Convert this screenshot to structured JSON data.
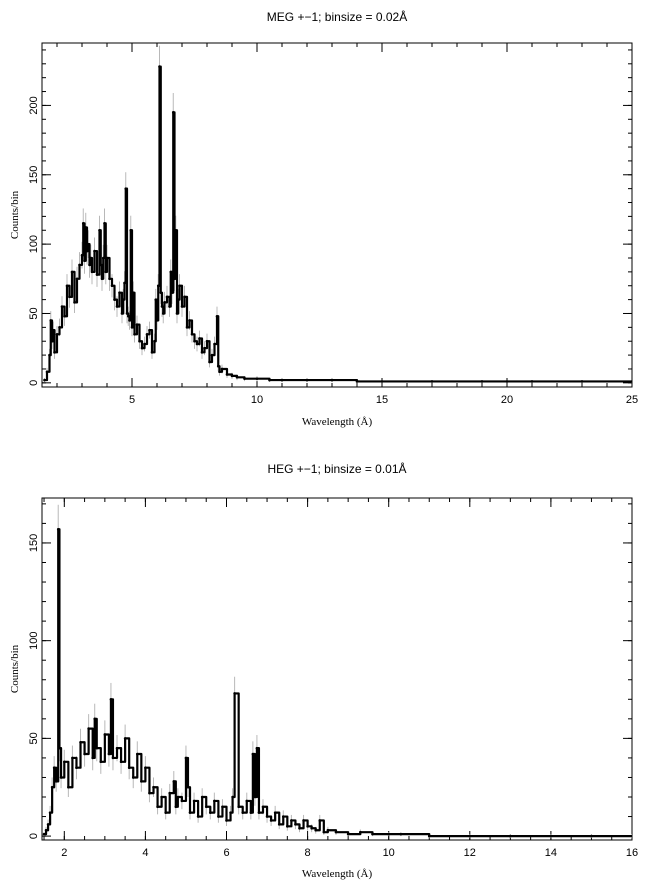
{
  "chart_data": [
    {
      "type": "line",
      "title": "MEG +−1; binsize = 0.02Å",
      "xlabel": "Wavelength (Å)",
      "ylabel": "Counts/bin",
      "xlim": [
        1.4,
        25
      ],
      "ylim": [
        -3,
        245
      ],
      "x_ticks": [
        5,
        10,
        15,
        20,
        25
      ],
      "y_ticks": [
        0,
        50,
        100,
        150,
        200
      ],
      "x_minor_step": 1,
      "y_minor_step": 10,
      "error_bars": true,
      "series": [
        {
          "x": [
            1.5,
            1.6,
            1.7,
            1.75,
            1.8,
            1.85,
            1.9,
            2.0,
            2.1,
            2.2,
            2.3,
            2.4,
            2.5,
            2.6,
            2.7,
            2.8,
            2.9,
            3.0,
            3.05,
            3.1,
            3.15,
            3.2,
            3.25,
            3.3,
            3.35,
            3.4,
            3.5,
            3.6,
            3.7,
            3.75,
            3.8,
            3.85,
            3.9,
            3.95,
            4.0,
            4.1,
            4.2,
            4.3,
            4.4,
            4.5,
            4.6,
            4.65,
            4.7,
            4.75,
            4.8,
            4.85,
            4.9,
            4.95,
            5.0,
            5.05,
            5.1,
            5.2,
            5.3,
            5.4,
            5.5,
            5.6,
            5.7,
            5.8,
            5.9,
            5.95,
            6.0,
            6.05,
            6.1,
            6.15,
            6.2,
            6.25,
            6.3,
            6.4,
            6.5,
            6.55,
            6.6,
            6.65,
            6.7,
            6.75,
            6.8,
            6.85,
            6.9,
            7.0,
            7.1,
            7.2,
            7.3,
            7.4,
            7.5,
            7.6,
            7.7,
            7.8,
            7.9,
            8.0,
            8.1,
            8.2,
            8.3,
            8.4,
            8.45,
            8.5,
            8.6,
            8.8,
            9.0,
            9.2,
            9.5,
            10.0,
            10.5,
            11.0,
            12.0,
            13.0,
            14.0,
            15.0,
            17.0,
            19.0,
            21.0,
            23.0,
            25.0
          ],
          "y": [
            2,
            8,
            20,
            45,
            30,
            38,
            22,
            35,
            40,
            55,
            48,
            70,
            62,
            80,
            58,
            75,
            85,
            92,
            115,
            88,
            112,
            95,
            100,
            85,
            90,
            80,
            95,
            78,
            110,
            85,
            75,
            90,
            115,
            80,
            90,
            75,
            70,
            60,
            55,
            65,
            50,
            60,
            72,
            140,
            50,
            48,
            45,
            110,
            40,
            65,
            35,
            42,
            30,
            25,
            28,
            35,
            38,
            22,
            30,
            60,
            45,
            70,
            228,
            65,
            55,
            50,
            58,
            62,
            55,
            80,
            65,
            195,
            75,
            110,
            50,
            60,
            70,
            55,
            62,
            40,
            45,
            35,
            30,
            28,
            32,
            22,
            25,
            30,
            15,
            20,
            28,
            48,
            12,
            8,
            10,
            6,
            5,
            4,
            3,
            3,
            2,
            2,
            2,
            2,
            1,
            1,
            1,
            1,
            1,
            1,
            1
          ]
        }
      ]
    },
    {
      "type": "line",
      "title": "HEG +−1; binsize = 0.01Å",
      "xlabel": "Wavelength (Å)",
      "ylabel": "Counts/bin",
      "xlim": [
        1.45,
        16
      ],
      "ylim": [
        -2,
        173
      ],
      "x_ticks": [
        2,
        4,
        6,
        8,
        10,
        12,
        14,
        16
      ],
      "y_ticks": [
        0,
        50,
        100,
        150
      ],
      "x_minor_step": 0.5,
      "y_minor_step": 10,
      "error_bars": true,
      "series": [
        {
          "x": [
            1.5,
            1.55,
            1.6,
            1.65,
            1.7,
            1.75,
            1.8,
            1.85,
            1.88,
            1.92,
            2.0,
            2.1,
            2.2,
            2.3,
            2.4,
            2.5,
            2.6,
            2.7,
            2.75,
            2.8,
            2.9,
            3.0,
            3.1,
            3.15,
            3.2,
            3.3,
            3.4,
            3.5,
            3.6,
            3.7,
            3.8,
            3.9,
            4.0,
            4.1,
            4.2,
            4.3,
            4.4,
            4.5,
            4.6,
            4.7,
            4.75,
            4.8,
            4.9,
            5.0,
            5.05,
            5.1,
            5.2,
            5.3,
            5.4,
            5.5,
            5.6,
            5.7,
            5.8,
            5.9,
            6.0,
            6.1,
            6.15,
            6.2,
            6.3,
            6.4,
            6.5,
            6.6,
            6.65,
            6.7,
            6.75,
            6.8,
            6.9,
            7.0,
            7.1,
            7.2,
            7.3,
            7.4,
            7.5,
            7.6,
            7.7,
            7.8,
            7.9,
            8.0,
            8.1,
            8.2,
            8.3,
            8.4,
            8.5,
            8.7,
            9.0,
            9.3,
            9.6,
            10.0,
            10.3,
            11.0,
            12.0,
            13.0,
            14.0,
            15.0,
            16.0
          ],
          "y": [
            1,
            3,
            6,
            12,
            25,
            35,
            28,
            157,
            45,
            30,
            38,
            25,
            40,
            35,
            48,
            42,
            55,
            40,
            60,
            45,
            38,
            52,
            42,
            70,
            40,
            45,
            38,
            50,
            35,
            30,
            42,
            28,
            35,
            22,
            25,
            15,
            20,
            12,
            22,
            28,
            15,
            20,
            18,
            40,
            25,
            12,
            18,
            10,
            20,
            15,
            12,
            18,
            10,
            15,
            8,
            12,
            20,
            73,
            15,
            12,
            18,
            12,
            42,
            20,
            45,
            12,
            15,
            10,
            8,
            12,
            6,
            10,
            5,
            8,
            6,
            4,
            8,
            5,
            4,
            3,
            8,
            2,
            3,
            2,
            1,
            2,
            1,
            1,
            1,
            0,
            0,
            0,
            0,
            0,
            0
          ]
        }
      ]
    }
  ]
}
